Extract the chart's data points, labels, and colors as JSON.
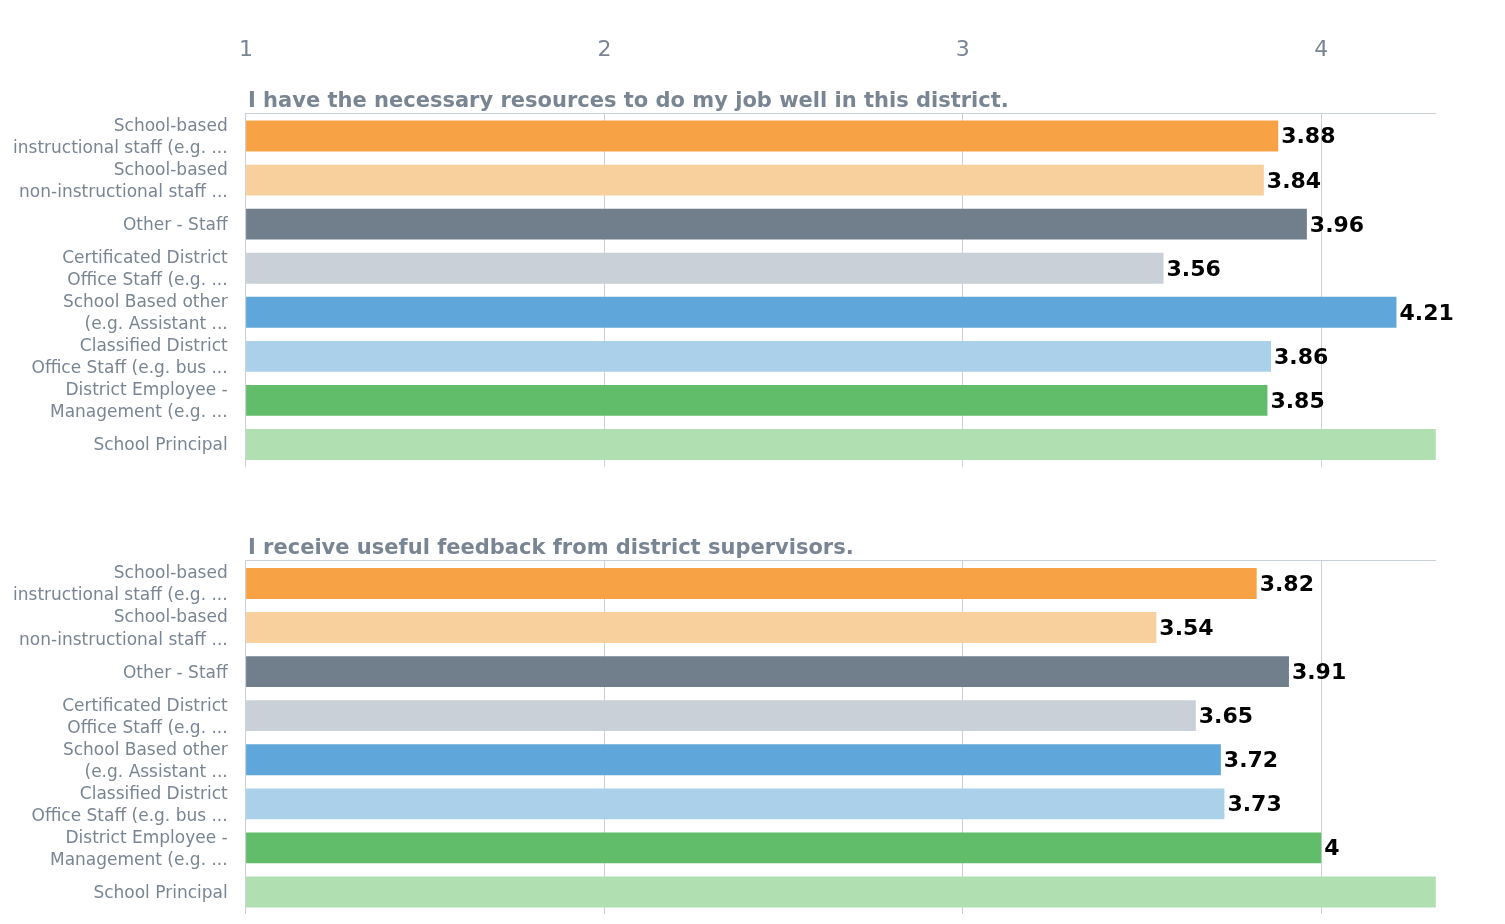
{
  "chart_data": [
    {
      "type": "bar",
      "orientation": "horizontal",
      "title": "I have the necessary resources to do my job well in this district.",
      "categories": [
        "School-based\ninstructional staff (e.g. ...",
        "School-based\nnon-instructional staff ...",
        "Other - Staff",
        "Certificated District\nOffice Staff (e.g. ...",
        "School Based other\n(e.g. Assistant ...",
        "Classified District\nOffice Staff (e.g. bus ...",
        "District Employee -\nManagement (e.g. ...",
        "School Principal"
      ],
      "values": [
        3.88,
        3.84,
        3.96,
        3.56,
        4.21,
        3.86,
        3.85,
        4.32
      ],
      "value_labels": [
        "3.88",
        "3.84",
        "3.96",
        "3.56",
        "4.21",
        "3.86",
        "3.85",
        null
      ],
      "colors": [
        "#f7a345",
        "#f8d09e",
        "#717f8d",
        "#c9d0d8",
        "#5fa7da",
        "#abd0ea",
        "#62bd6b",
        "#b0dfb2"
      ],
      "xlim": [
        1,
        4.32
      ],
      "xticks": [
        1,
        2,
        3,
        4
      ],
      "grid": "x"
    },
    {
      "type": "bar",
      "orientation": "horizontal",
      "title": "I receive useful feedback from district supervisors.",
      "categories": [
        "School-based\ninstructional staff (e.g. ...",
        "School-based\nnon-instructional staff ...",
        "Other - Staff",
        "Certificated District\nOffice Staff (e.g. ...",
        "School Based other\n(e.g. Assistant ...",
        "Classified District\nOffice Staff (e.g. bus ...",
        "District Employee -\nManagement (e.g. ...",
        "School Principal"
      ],
      "values": [
        3.82,
        3.54,
        3.91,
        3.65,
        3.72,
        3.73,
        4,
        4.32
      ],
      "value_labels": [
        "3.82",
        "3.54",
        "3.91",
        "3.65",
        "3.72",
        "3.73",
        "4",
        null
      ],
      "colors": [
        "#f7a345",
        "#f8d09e",
        "#717f8d",
        "#c9d0d8",
        "#5fa7da",
        "#abd0ea",
        "#62bd6b",
        "#b0dfb2"
      ],
      "xlim": [
        1,
        4.32
      ],
      "xticks": [
        1,
        2,
        3,
        4
      ],
      "grid": "x",
      "tick_labels": "y"
    }
  ]
}
